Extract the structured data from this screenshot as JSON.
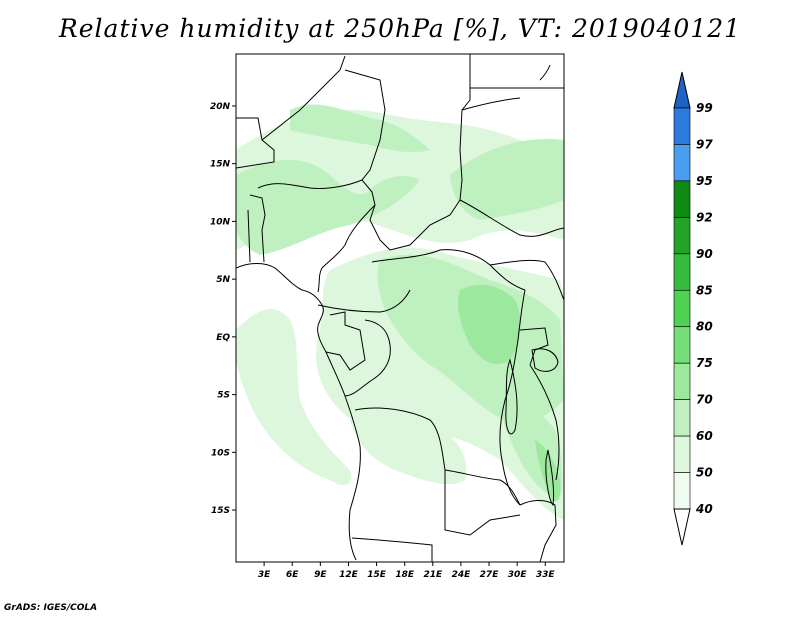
{
  "title": "Relative humidity at 250hPa [%], VT: 2019040121",
  "credit": "GrADS: IGES/COLA",
  "map": {
    "lat_ticks": [
      "20N",
      "15N",
      "10N",
      "5N",
      "EQ",
      "5S",
      "10S",
      "15S"
    ],
    "lat_values": [
      20,
      15,
      10,
      5,
      0,
      -5,
      -10,
      -15
    ],
    "lon_ticks": [
      "3E",
      "6E",
      "9E",
      "12E",
      "15E",
      "18E",
      "21E",
      "24E",
      "27E",
      "30E",
      "33E"
    ],
    "lon_values": [
      3,
      6,
      9,
      12,
      15,
      18,
      21,
      24,
      27,
      30,
      33
    ],
    "lon_range": [
      0,
      35
    ],
    "lat_range": [
      -19.5,
      24.5
    ]
  },
  "colorbar": {
    "levels": [
      "99",
      "97",
      "95",
      "92",
      "90",
      "85",
      "80",
      "75",
      "70",
      "60",
      "50",
      "40"
    ],
    "colors": [
      "#1f62c6",
      "#2b7bde",
      "#4a9ef0",
      "#0f8a12",
      "#23a427",
      "#37bb3c",
      "#4fd152",
      "#76de78",
      "#9ce89d",
      "#bff0c0",
      "#dcf7dc",
      "#f0fbf0"
    ]
  },
  "palette": {
    "land": "#ffffff",
    "border": "#000000",
    "green_levels": [
      "#f0fbf0",
      "#dcf7dc",
      "#bff0c0",
      "#9ce89d"
    ]
  }
}
